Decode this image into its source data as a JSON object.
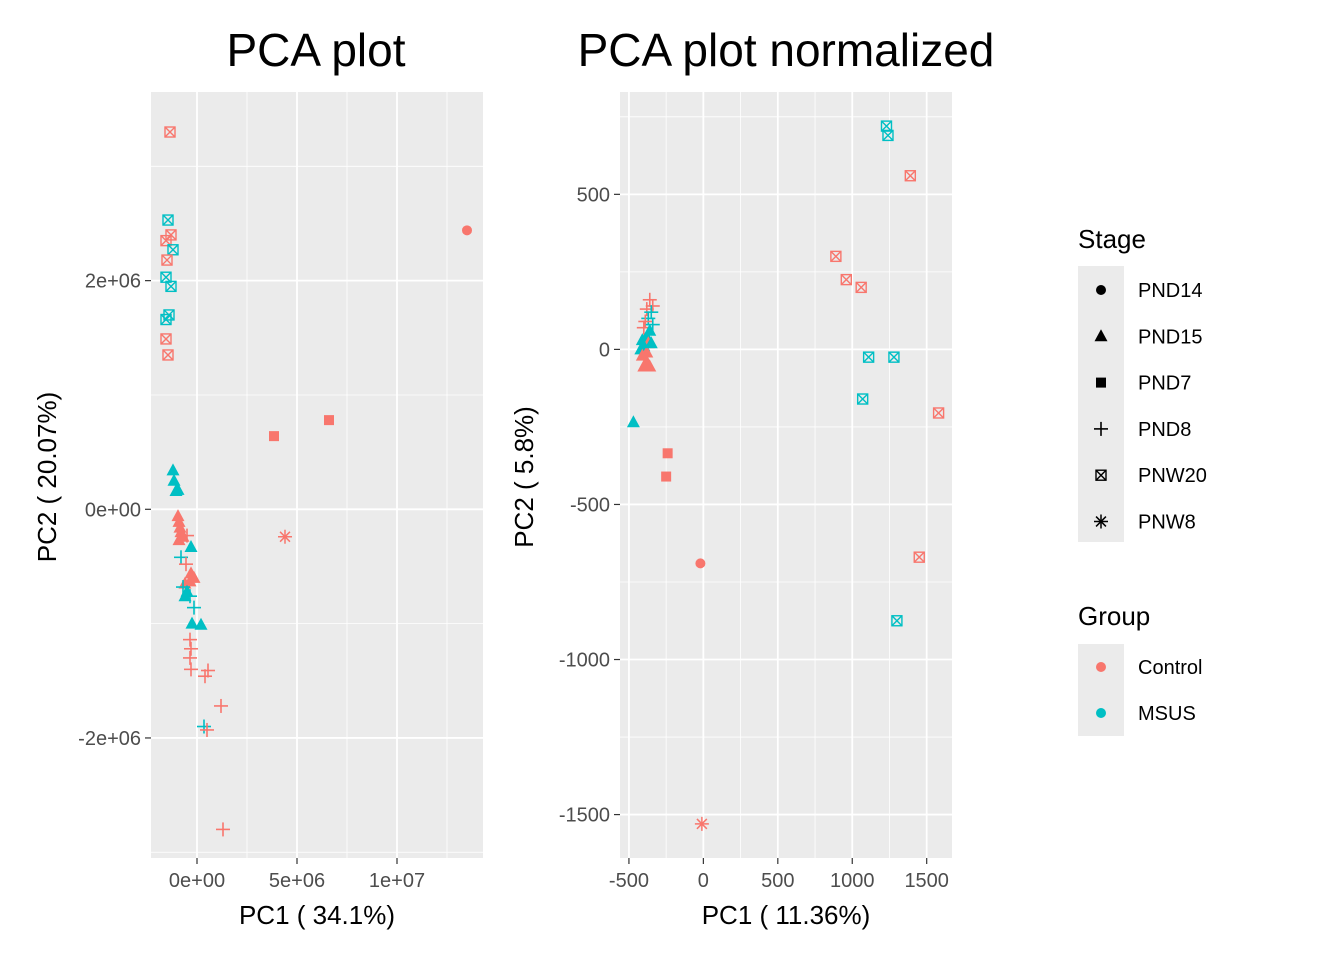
{
  "colors": {
    "Control": "#F8766D",
    "MSUS": "#00BFC4",
    "panel": "#EBEBEB",
    "grid": "#FFFFFF",
    "text": "#000000",
    "tick_text": "#4D4D4D"
  },
  "legend": {
    "stage": {
      "title": "Stage",
      "entries": [
        {
          "label": "PND14",
          "shape": "circle"
        },
        {
          "label": "PND15",
          "shape": "triangle"
        },
        {
          "label": "PND7",
          "shape": "square"
        },
        {
          "label": "PND8",
          "shape": "plus"
        },
        {
          "label": "PNW20",
          "shape": "boxx"
        },
        {
          "label": "PNW8",
          "shape": "asterisk"
        }
      ]
    },
    "group": {
      "title": "Group",
      "entries": [
        {
          "label": "Control",
          "color": "#F8766D"
        },
        {
          "label": "MSUS",
          "color": "#00BFC4"
        }
      ]
    }
  },
  "chart_data": [
    {
      "type": "scatter",
      "title": "PCA plot",
      "xlabel": "PC1 ( 34.1%)",
      "ylabel": "PC2 ( 20.07%)",
      "xlim": [
        -2300000,
        14300000
      ],
      "ylim": [
        -3050000,
        3650000
      ],
      "xticks": [
        {
          "v": 0,
          "label": "0e+00"
        },
        {
          "v": 5000000,
          "label": "5e+06"
        },
        {
          "v": 10000000,
          "label": "1e+07"
        }
      ],
      "yticks": [
        {
          "v": -2000000,
          "label": "-2e+06"
        },
        {
          "v": 0,
          "label": "0e+00"
        },
        {
          "v": 2000000,
          "label": "2e+06"
        }
      ],
      "xminor": [
        -2500000,
        2500000,
        7500000,
        12500000
      ],
      "yminor": [
        -3000000,
        -1000000,
        1000000,
        3000000
      ],
      "points": [
        {
          "x": -1350000,
          "y": 3300000,
          "stage": "PNW20",
          "group": "Control"
        },
        {
          "x": -1450000,
          "y": 2530000,
          "stage": "PNW20",
          "group": "MSUS"
        },
        {
          "x": -1300000,
          "y": 2400000,
          "stage": "PNW20",
          "group": "Control"
        },
        {
          "x": -1550000,
          "y": 2350000,
          "stage": "PNW20",
          "group": "Control"
        },
        {
          "x": -1200000,
          "y": 2270000,
          "stage": "PNW20",
          "group": "MSUS"
        },
        {
          "x": -1500000,
          "y": 2180000,
          "stage": "PNW20",
          "group": "Control"
        },
        {
          "x": -1550000,
          "y": 2030000,
          "stage": "PNW20",
          "group": "MSUS"
        },
        {
          "x": -1300000,
          "y": 1950000,
          "stage": "PNW20",
          "group": "MSUS"
        },
        {
          "x": -1400000,
          "y": 1700000,
          "stage": "PNW20",
          "group": "MSUS"
        },
        {
          "x": -1550000,
          "y": 1660000,
          "stage": "PNW20",
          "group": "MSUS"
        },
        {
          "x": -1550000,
          "y": 1490000,
          "stage": "PNW20",
          "group": "Control"
        },
        {
          "x": -1450000,
          "y": 1350000,
          "stage": "PNW20",
          "group": "Control"
        },
        {
          "x": 13500000,
          "y": 2440000,
          "stage": "PND14",
          "group": "Control"
        },
        {
          "x": 6600000,
          "y": 780000,
          "stage": "PND7",
          "group": "Control"
        },
        {
          "x": 3850000,
          "y": 640000,
          "stage": "PND7",
          "group": "Control"
        },
        {
          "x": 4400000,
          "y": -240000,
          "stage": "PNW8",
          "group": "Control"
        },
        {
          "x": -1200000,
          "y": 340000,
          "stage": "PND15",
          "group": "MSUS"
        },
        {
          "x": -1150000,
          "y": 250000,
          "stage": "PND15",
          "group": "MSUS"
        },
        {
          "x": -1050000,
          "y": 160000,
          "stage": "PND15",
          "group": "MSUS"
        },
        {
          "x": -950000,
          "y": 170000,
          "stage": "PND15",
          "group": "MSUS"
        },
        {
          "x": -950000,
          "y": -60000,
          "stage": "PND15",
          "group": "Control"
        },
        {
          "x": -900000,
          "y": -110000,
          "stage": "PND15",
          "group": "Control"
        },
        {
          "x": -850000,
          "y": -160000,
          "stage": "PND15",
          "group": "Control"
        },
        {
          "x": -800000,
          "y": -200000,
          "stage": "PND15",
          "group": "Control"
        },
        {
          "x": -700000,
          "y": -240000,
          "stage": "PND15",
          "group": "Control"
        },
        {
          "x": -900000,
          "y": -270000,
          "stage": "PND15",
          "group": "Control"
        },
        {
          "x": -500000,
          "y": -230000,
          "stage": "PND8",
          "group": "Control"
        },
        {
          "x": -300000,
          "y": -330000,
          "stage": "PND15",
          "group": "MSUS"
        },
        {
          "x": -800000,
          "y": -420000,
          "stage": "PND8",
          "group": "MSUS"
        },
        {
          "x": -550000,
          "y": -480000,
          "stage": "PND8",
          "group": "Control"
        },
        {
          "x": -300000,
          "y": -560000,
          "stage": "PND15",
          "group": "Control"
        },
        {
          "x": -150000,
          "y": -600000,
          "stage": "PND15",
          "group": "Control"
        },
        {
          "x": -350000,
          "y": -630000,
          "stage": "PND15",
          "group": "Control"
        },
        {
          "x": -600000,
          "y": -650000,
          "stage": "PND15",
          "group": "Control"
        },
        {
          "x": -700000,
          "y": -680000,
          "stage": "PND8",
          "group": "MSUS"
        },
        {
          "x": -500000,
          "y": -720000,
          "stage": "PND15",
          "group": "MSUS"
        },
        {
          "x": -350000,
          "y": -760000,
          "stage": "PND8",
          "group": "MSUS"
        },
        {
          "x": -600000,
          "y": -760000,
          "stage": "PND15",
          "group": "MSUS"
        },
        {
          "x": -150000,
          "y": -860000,
          "stage": "PND8",
          "group": "MSUS"
        },
        {
          "x": -250000,
          "y": -1000000,
          "stage": "PND15",
          "group": "MSUS"
        },
        {
          "x": 200000,
          "y": -1010000,
          "stage": "PND15",
          "group": "MSUS"
        },
        {
          "x": -350000,
          "y": -1140000,
          "stage": "PND8",
          "group": "Control"
        },
        {
          "x": -300000,
          "y": -1220000,
          "stage": "PND8",
          "group": "Control"
        },
        {
          "x": -350000,
          "y": -1300000,
          "stage": "PND8",
          "group": "Control"
        },
        {
          "x": -300000,
          "y": -1400000,
          "stage": "PND8",
          "group": "Control"
        },
        {
          "x": 550000,
          "y": -1410000,
          "stage": "PND8",
          "group": "Control"
        },
        {
          "x": 400000,
          "y": -1460000,
          "stage": "PND8",
          "group": "Control"
        },
        {
          "x": 1200000,
          "y": -1720000,
          "stage": "PND8",
          "group": "Control"
        },
        {
          "x": 350000,
          "y": -1900000,
          "stage": "PND8",
          "group": "MSUS"
        },
        {
          "x": 500000,
          "y": -1930000,
          "stage": "PND8",
          "group": "Control"
        },
        {
          "x": 1300000,
          "y": -2800000,
          "stage": "PND8",
          "group": "Control"
        }
      ]
    },
    {
      "type": "scatter",
      "title": "PCA plot normalized",
      "xlabel": "PC1 ( 11.36%)",
      "ylabel": "PC2 ( 5.8%)",
      "xlim": [
        -560,
        1670
      ],
      "ylim": [
        -1640,
        830
      ],
      "xticks": [
        {
          "v": -500,
          "label": "-500"
        },
        {
          "v": 0,
          "label": "0"
        },
        {
          "v": 500,
          "label": "500"
        },
        {
          "v": 1000,
          "label": "1000"
        },
        {
          "v": 1500,
          "label": "1500"
        }
      ],
      "yticks": [
        {
          "v": -1500,
          "label": "-1500"
        },
        {
          "v": -1000,
          "label": "-1000"
        },
        {
          "v": -500,
          "label": "-500"
        },
        {
          "v": 0,
          "label": "0"
        },
        {
          "v": 500,
          "label": "500"
        }
      ],
      "xminor": [
        -250,
        250,
        750,
        1250
      ],
      "yminor": [
        -1250,
        -750,
        -250,
        250,
        750
      ],
      "points": [
        {
          "x": 1230,
          "y": 720,
          "stage": "PNW20",
          "group": "MSUS"
        },
        {
          "x": 1240,
          "y": 690,
          "stage": "PNW20",
          "group": "MSUS"
        },
        {
          "x": 1390,
          "y": 560,
          "stage": "PNW20",
          "group": "Control"
        },
        {
          "x": 890,
          "y": 300,
          "stage": "PNW20",
          "group": "Control"
        },
        {
          "x": 960,
          "y": 225,
          "stage": "PNW20",
          "group": "Control"
        },
        {
          "x": 1060,
          "y": 200,
          "stage": "PNW20",
          "group": "Control"
        },
        {
          "x": 1110,
          "y": -25,
          "stage": "PNW20",
          "group": "MSUS"
        },
        {
          "x": 1280,
          "y": -25,
          "stage": "PNW20",
          "group": "MSUS"
        },
        {
          "x": 1070,
          "y": -160,
          "stage": "PNW20",
          "group": "MSUS"
        },
        {
          "x": 1580,
          "y": -205,
          "stage": "PNW20",
          "group": "Control"
        },
        {
          "x": 1450,
          "y": -670,
          "stage": "PNW20",
          "group": "Control"
        },
        {
          "x": 1300,
          "y": -875,
          "stage": "PNW20",
          "group": "MSUS"
        },
        {
          "x": -360,
          "y": 160,
          "stage": "PND8",
          "group": "Control"
        },
        {
          "x": -340,
          "y": 140,
          "stage": "PND8",
          "group": "Control"
        },
        {
          "x": -380,
          "y": 130,
          "stage": "PND8",
          "group": "Control"
        },
        {
          "x": -350,
          "y": 120,
          "stage": "PND8",
          "group": "MSUS"
        },
        {
          "x": -370,
          "y": 100,
          "stage": "PND8",
          "group": "MSUS"
        },
        {
          "x": -390,
          "y": 90,
          "stage": "PND8",
          "group": "Control"
        },
        {
          "x": -340,
          "y": 80,
          "stage": "PND8",
          "group": "MSUS"
        },
        {
          "x": -400,
          "y": 70,
          "stage": "PND8",
          "group": "Control"
        },
        {
          "x": -360,
          "y": 60,
          "stage": "PND15",
          "group": "MSUS"
        },
        {
          "x": -380,
          "y": 40,
          "stage": "PND15",
          "group": "MSUS"
        },
        {
          "x": -410,
          "y": 30,
          "stage": "PND15",
          "group": "MSUS"
        },
        {
          "x": -370,
          "y": 20,
          "stage": "PND15",
          "group": "Control"
        },
        {
          "x": -400,
          "y": 10,
          "stage": "PND15",
          "group": "MSUS"
        },
        {
          "x": -420,
          "y": 0,
          "stage": "PND15",
          "group": "MSUS"
        },
        {
          "x": -380,
          "y": -10,
          "stage": "PND15",
          "group": "Control"
        },
        {
          "x": -410,
          "y": -20,
          "stage": "PND15",
          "group": "Control"
        },
        {
          "x": -380,
          "y": -40,
          "stage": "PND15",
          "group": "Control"
        },
        {
          "x": -400,
          "y": -55,
          "stage": "PND15",
          "group": "Control"
        },
        {
          "x": -360,
          "y": -55,
          "stage": "PND15",
          "group": "Control"
        },
        {
          "x": -350,
          "y": 20,
          "stage": "PND15",
          "group": "MSUS"
        },
        {
          "x": -470,
          "y": -235,
          "stage": "PND15",
          "group": "MSUS"
        },
        {
          "x": -240,
          "y": -335,
          "stage": "PND7",
          "group": "Control"
        },
        {
          "x": -250,
          "y": -410,
          "stage": "PND7",
          "group": "Control"
        },
        {
          "x": -20,
          "y": -690,
          "stage": "PND14",
          "group": "Control"
        },
        {
          "x": -10,
          "y": -1530,
          "stage": "PNW8",
          "group": "Control"
        }
      ]
    }
  ]
}
